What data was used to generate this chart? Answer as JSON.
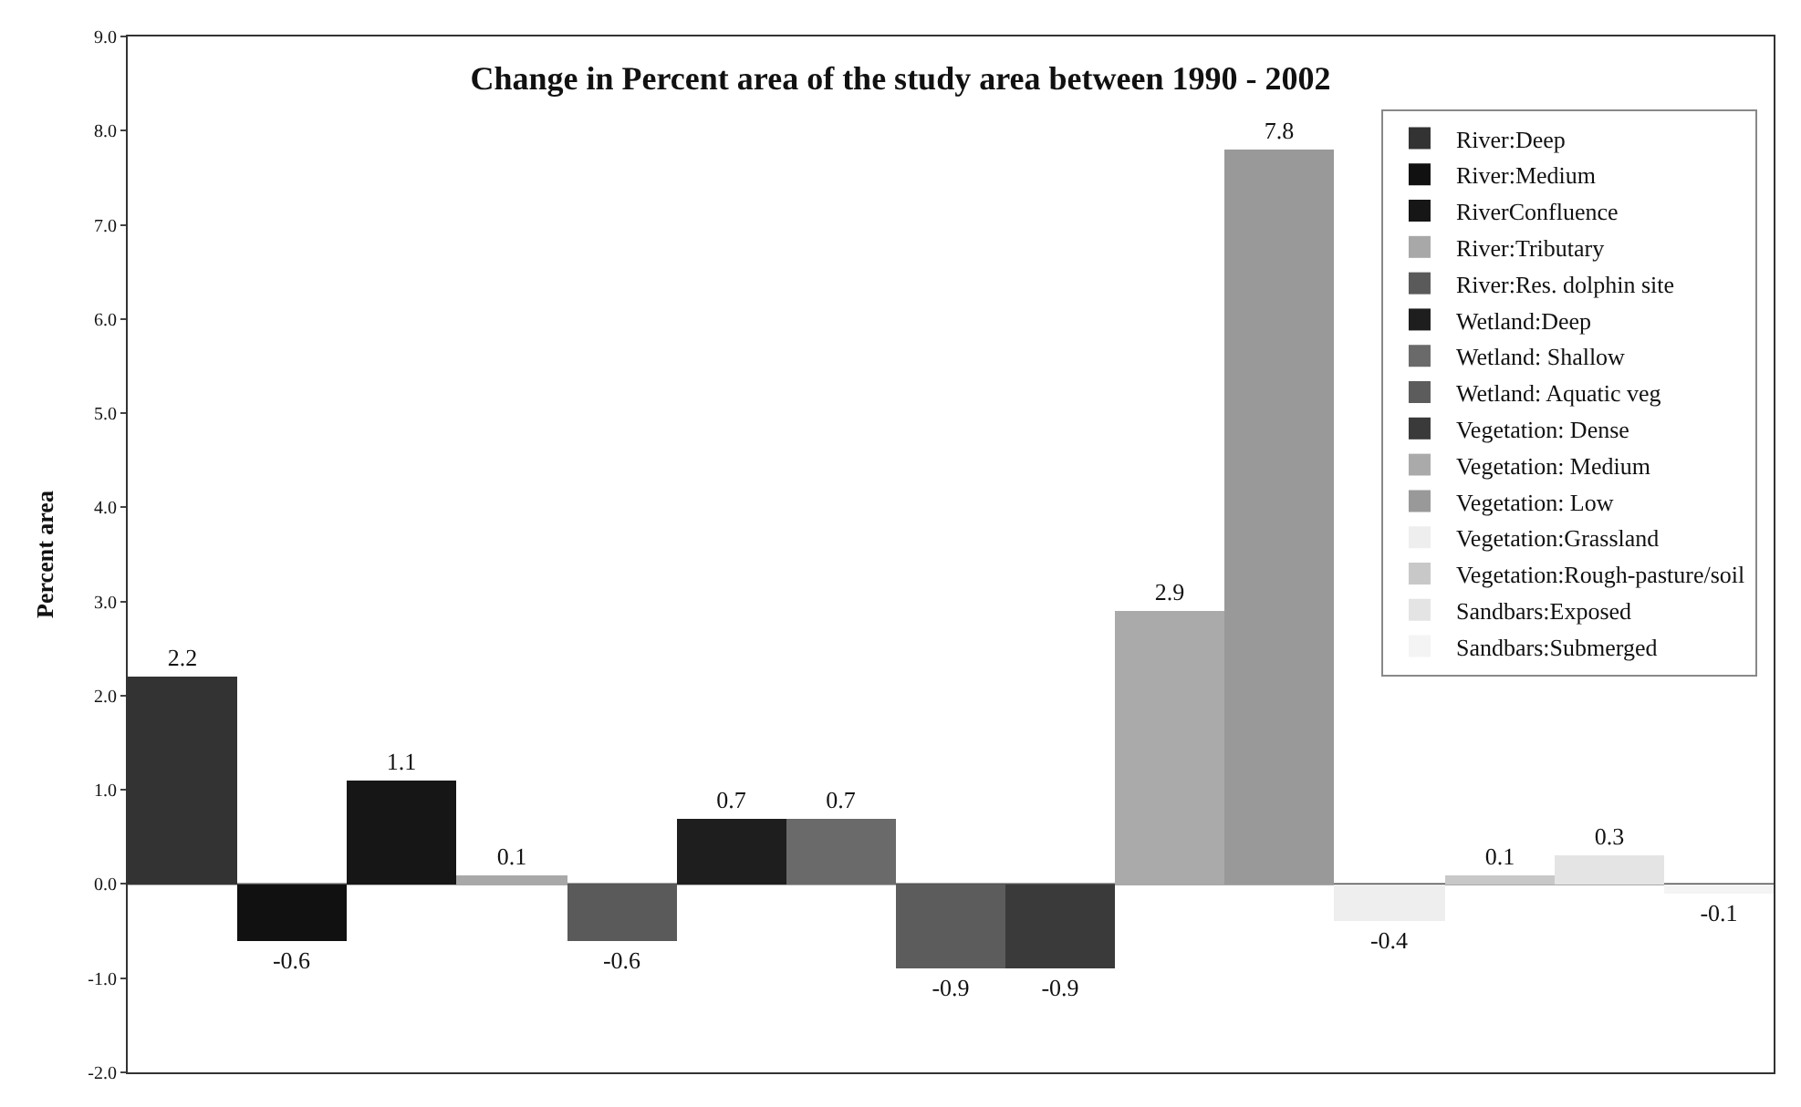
{
  "chart_data": {
    "type": "bar",
    "title": "Change in Percent area of the study area between 1990 - 2002",
    "ylabel": "Percent area",
    "categories": [
      null
    ],
    "series": [
      {
        "name": "River:Deep",
        "color": "#333333",
        "values": [
          2.2
        ]
      },
      {
        "name": "River:Medium",
        "color": "#111111",
        "values": [
          -0.6
        ]
      },
      {
        "name": "RiverConfluence",
        "color": "#161616",
        "values": [
          1.1
        ]
      },
      {
        "name": "River:Tributary",
        "color": "#a8a8a8",
        "values": [
          0.1
        ]
      },
      {
        "name": "River:Res. dolphin site",
        "color": "#5a5a5a",
        "values": [
          -0.6
        ]
      },
      {
        "name": "Wetland:Deep",
        "color": "#1e1e1e",
        "values": [
          0.7
        ]
      },
      {
        "name": "Wetland: Shallow",
        "color": "#6a6a6a",
        "values": [
          0.7
        ]
      },
      {
        "name": "Wetland: Aquatic veg",
        "color": "#5c5c5c",
        "values": [
          -0.9
        ]
      },
      {
        "name": "Vegetation: Dense",
        "color": "#3a3a3a",
        "values": [
          -0.9
        ]
      },
      {
        "name": "Vegetation: Medium",
        "color": "#aaaaaa",
        "values": [
          2.9
        ]
      },
      {
        "name": "Vegetation: Low",
        "color": "#999999",
        "values": [
          7.8
        ]
      },
      {
        "name": "Vegetation:Grassland",
        "color": "#eeeeee",
        "values": [
          -0.4
        ]
      },
      {
        "name": "Vegetation:Rough-pasture/soil",
        "color": "#c8c8c8",
        "values": [
          0.1
        ]
      },
      {
        "name": "Sandbars:Exposed",
        "color": "#e4e4e4",
        "values": [
          0.3
        ]
      },
      {
        "name": "Sandbars:Submerged",
        "color": "#f4f4f4",
        "values": [
          -0.1
        ]
      }
    ],
    "ylim": [
      -2.0,
      9.0
    ],
    "yticks": [
      {
        "value": -2,
        "label": "-2.0"
      },
      {
        "value": -1,
        "label": "-1.0"
      },
      {
        "value": 0,
        "label": "0.0"
      },
      {
        "value": 1,
        "label": "1.0"
      },
      {
        "value": 2,
        "label": "2.0"
      },
      {
        "value": 3,
        "label": "3.0"
      },
      {
        "value": 4,
        "label": "4.0"
      },
      {
        "value": 5,
        "label": "5.0"
      },
      {
        "value": 6,
        "label": "6.0"
      },
      {
        "value": 7,
        "label": "7.0"
      },
      {
        "value": 8,
        "label": "8.0"
      },
      {
        "value": 9,
        "label": "9.0"
      }
    ],
    "ref_lines": [
      {
        "axis": "y",
        "value": 0,
        "color": "#555555"
      }
    ],
    "data_labels": true,
    "grid": false,
    "legend": "top right"
  }
}
